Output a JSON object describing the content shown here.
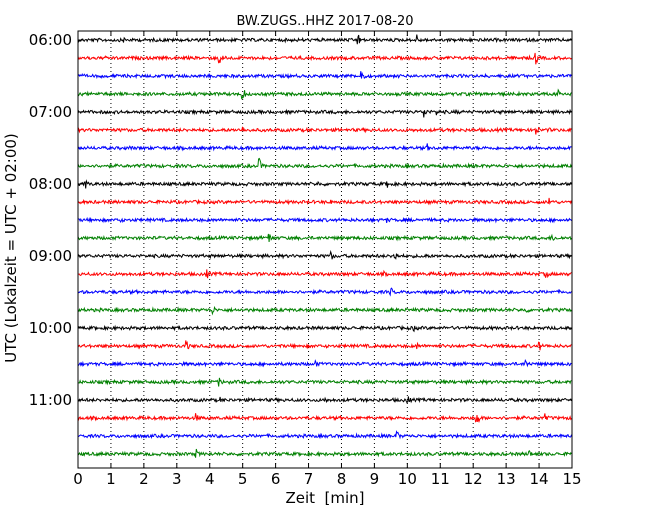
{
  "chart_data": {
    "type": "line",
    "title": "BW.ZUGS..HHZ 2017-08-20",
    "xlabel": "Zeit  [min]",
    "ylabel": "UTC (Lokalzeit = UTC + 02:00)",
    "xlim": [
      0,
      15
    ],
    "x_ticks": [
      "0",
      "1",
      "2",
      "3",
      "4",
      "5",
      "6",
      "7",
      "8",
      "9",
      "10",
      "11",
      "12",
      "13",
      "14",
      "15"
    ],
    "y_tick_labels": [
      "06:00",
      "07:00",
      "08:00",
      "09:00",
      "10:00",
      "11:00"
    ],
    "grid": "vertical dotted",
    "trace_colors": [
      "#000000",
      "#ff0000",
      "#0000ff",
      "#008000"
    ],
    "traces": [
      {
        "start": "06:00",
        "events": [
          [
            1.4,
            3
          ],
          [
            8.5,
            7
          ],
          [
            10.3,
            6
          ]
        ]
      },
      {
        "start": "06:15",
        "events": [
          [
            4.3,
            8
          ],
          [
            4.5,
            3
          ],
          [
            13.9,
            7
          ]
        ]
      },
      {
        "start": "06:30",
        "events": [
          [
            8.6,
            9
          ],
          [
            14.2,
            2
          ]
        ]
      },
      {
        "start": "06:45",
        "events": [
          [
            5.0,
            8
          ],
          [
            14.6,
            8
          ]
        ]
      },
      {
        "start": "07:00",
        "events": [
          [
            10.5,
            8
          ],
          [
            10.9,
            4
          ],
          [
            11.5,
            3
          ]
        ]
      },
      {
        "start": "07:15",
        "events": [
          [
            5.0,
            4
          ],
          [
            13.9,
            7
          ],
          [
            14.3,
            3
          ]
        ]
      },
      {
        "start": "07:30",
        "events": [
          [
            1.6,
            3
          ],
          [
            10.6,
            5
          ]
        ]
      },
      {
        "start": "07:45",
        "events": [
          [
            5.5,
            8
          ]
        ]
      },
      {
        "start": "08:00",
        "events": [
          [
            0.2,
            7
          ],
          [
            7.3,
            3
          ],
          [
            9.4,
            6
          ]
        ]
      },
      {
        "start": "08:15",
        "events": [
          [
            7.7,
            3
          ],
          [
            14.3,
            7
          ]
        ]
      },
      {
        "start": "08:30",
        "events": [
          [
            1.3,
            3
          ],
          [
            9.4,
            3
          ]
        ]
      },
      {
        "start": "08:45",
        "events": [
          [
            5.8,
            6
          ],
          [
            14.4,
            5
          ]
        ]
      },
      {
        "start": "09:00",
        "events": [
          [
            7.7,
            5
          ],
          [
            9.6,
            8
          ],
          [
            10.5,
            5
          ]
        ]
      },
      {
        "start": "09:15",
        "events": [
          [
            3.9,
            6
          ],
          [
            9.3,
            3
          ],
          [
            14.2,
            6
          ]
        ]
      },
      {
        "start": "09:30",
        "events": [
          [
            9.5,
            5
          ]
        ]
      },
      {
        "start": "09:45",
        "events": [
          [
            4.1,
            5
          ],
          [
            13.6,
            5
          ]
        ]
      },
      {
        "start": "10:00",
        "events": [
          [
            10.2,
            4
          ]
        ]
      },
      {
        "start": "10:15",
        "events": [
          [
            3.3,
            6
          ],
          [
            10.3,
            4
          ],
          [
            14.0,
            6
          ]
        ]
      },
      {
        "start": "10:30",
        "events": [
          [
            7.2,
            5
          ],
          [
            13.6,
            6
          ]
        ]
      },
      {
        "start": "10:45",
        "events": [
          [
            4.3,
            5
          ],
          [
            13.3,
            4
          ]
        ]
      },
      {
        "start": "11:00",
        "events": [
          [
            4.3,
            4
          ],
          [
            7.5,
            4
          ],
          [
            10.0,
            7
          ]
        ]
      },
      {
        "start": "11:15",
        "events": [
          [
            3.6,
            5
          ],
          [
            12.1,
            9
          ],
          [
            14.2,
            5
          ]
        ]
      },
      {
        "start": "11:30",
        "events": [
          [
            5.5,
            3
          ],
          [
            9.7,
            5
          ]
        ]
      },
      {
        "start": "11:45",
        "events": [
          [
            3.6,
            5
          ],
          [
            13.7,
            5
          ]
        ]
      }
    ]
  }
}
